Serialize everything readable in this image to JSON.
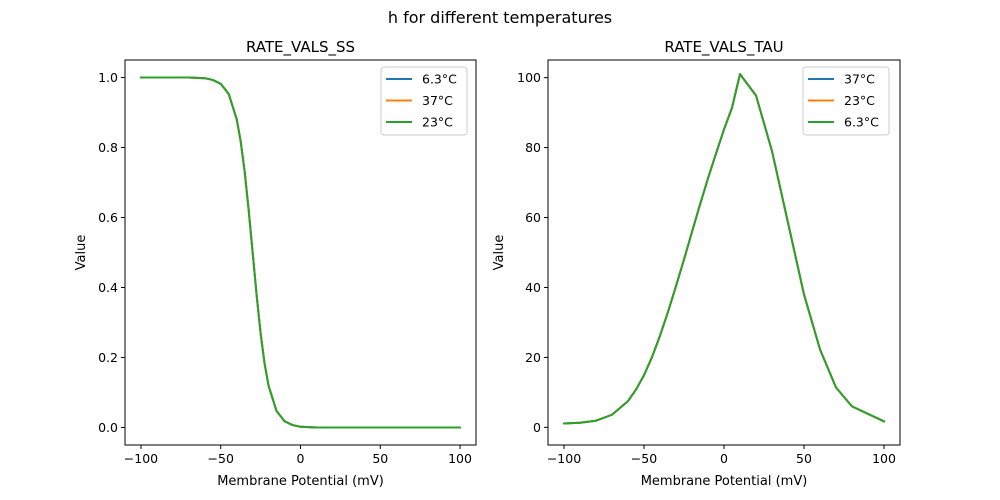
{
  "chart_data": {
    "suptitle": "h for different temperatures",
    "line_colors": [
      "#1f77b4",
      "#ff7f0e",
      "#2ca02c"
    ],
    "subplots": [
      {
        "type": "line",
        "title": "RATE_VALS_SS",
        "xlabel": "Membrane Potential (mV)",
        "ylabel": "Value",
        "xlim": [
          -110,
          110
        ],
        "ylim": [
          -0.05,
          1.05
        ],
        "xticks": [
          -100,
          -50,
          0,
          50,
          100
        ],
        "xtick_labels": [
          "−100",
          "−50",
          "0",
          "50",
          "100"
        ],
        "yticks": [
          0.0,
          0.2,
          0.4,
          0.6,
          0.8,
          1.0
        ],
        "ytick_labels": [
          "0.0",
          "0.2",
          "0.4",
          "0.6",
          "0.8",
          "1.0"
        ],
        "legend_position": "top-right",
        "series": [
          {
            "name": "6.3°C",
            "x": [
              -100,
              -90,
              -80,
              -70,
              -60,
              -55,
              -50,
              -45,
              -40,
              -37.5,
              -35,
              -32.5,
              -30,
              -27.5,
              -25,
              -22.5,
              -20,
              -15,
              -10,
              -5,
              0,
              10,
              20,
              40,
              60,
              80,
              100
            ],
            "y": [
              1.0,
              1.0,
              1.0,
              1.0,
              0.998,
              0.993,
              0.982,
              0.953,
              0.881,
              0.818,
              0.731,
              0.622,
              0.5,
              0.378,
              0.269,
              0.182,
              0.119,
              0.047,
              0.018,
              0.007,
              0.002,
              0.0,
              0.0,
              0.0,
              0.0,
              0.0,
              0.0
            ]
          },
          {
            "name": "37°C",
            "x": [
              -100,
              -90,
              -80,
              -70,
              -60,
              -55,
              -50,
              -45,
              -40,
              -37.5,
              -35,
              -32.5,
              -30,
              -27.5,
              -25,
              -22.5,
              -20,
              -15,
              -10,
              -5,
              0,
              10,
              20,
              40,
              60,
              80,
              100
            ],
            "y": [
              1.0,
              1.0,
              1.0,
              1.0,
              0.998,
              0.993,
              0.982,
              0.953,
              0.881,
              0.818,
              0.731,
              0.622,
              0.5,
              0.378,
              0.269,
              0.182,
              0.119,
              0.047,
              0.018,
              0.007,
              0.002,
              0.0,
              0.0,
              0.0,
              0.0,
              0.0,
              0.0
            ]
          },
          {
            "name": "23°C",
            "x": [
              -100,
              -90,
              -80,
              -70,
              -60,
              -55,
              -50,
              -45,
              -40,
              -37.5,
              -35,
              -32.5,
              -30,
              -27.5,
              -25,
              -22.5,
              -20,
              -15,
              -10,
              -5,
              0,
              10,
              20,
              40,
              60,
              80,
              100
            ],
            "y": [
              1.0,
              1.0,
              1.0,
              1.0,
              0.998,
              0.993,
              0.982,
              0.953,
              0.881,
              0.818,
              0.731,
              0.622,
              0.5,
              0.378,
              0.269,
              0.182,
              0.119,
              0.047,
              0.018,
              0.007,
              0.002,
              0.0,
              0.0,
              0.0,
              0.0,
              0.0,
              0.0
            ]
          }
        ]
      },
      {
        "type": "line",
        "title": "RATE_VALS_TAU",
        "xlabel": "Membrane Potential (mV)",
        "ylabel": "Value",
        "xlim": [
          -110,
          110
        ],
        "ylim": [
          -5.05,
          105.05
        ],
        "xticks": [
          -100,
          -50,
          0,
          50,
          100
        ],
        "xtick_labels": [
          "−100",
          "−50",
          "0",
          "50",
          "100"
        ],
        "yticks": [
          0,
          20,
          40,
          60,
          80,
          100
        ],
        "ytick_labels": [
          "0",
          "20",
          "40",
          "60",
          "80",
          "100"
        ],
        "legend_position": "top-right",
        "series": [
          {
            "name": "37°C",
            "x": [
              -100,
              -90,
              -80,
              -70,
              -60,
              -55,
              -50,
              -45,
              -40,
              -35,
              -30,
              -25,
              -20,
              -15,
              -10,
              -5,
              0,
              5,
              10,
              20,
              30,
              40,
              50,
              60,
              70,
              80,
              100
            ],
            "y": [
              1.1,
              1.3,
              1.9,
              3.6,
              7.5,
              10.8,
              14.9,
              20.1,
              26.2,
              33.0,
              40.4,
              48.0,
              55.9,
              63.7,
              71.2,
              78.3,
              85.2,
              91.4,
              101.0,
              94.9,
              79.0,
              58.5,
              38.0,
              22.3,
              11.4,
              6.0,
              1.7
            ]
          },
          {
            "name": "23°C",
            "x": [
              -100,
              -90,
              -80,
              -70,
              -60,
              -55,
              -50,
              -45,
              -40,
              -35,
              -30,
              -25,
              -20,
              -15,
              -10,
              -5,
              0,
              5,
              10,
              20,
              30,
              40,
              50,
              60,
              70,
              80,
              100
            ],
            "y": [
              1.1,
              1.3,
              1.9,
              3.6,
              7.5,
              10.8,
              14.9,
              20.1,
              26.2,
              33.0,
              40.4,
              48.0,
              55.9,
              63.7,
              71.2,
              78.3,
              85.2,
              91.4,
              101.0,
              94.9,
              79.0,
              58.5,
              38.0,
              22.3,
              11.4,
              6.0,
              1.7
            ]
          },
          {
            "name": "6.3°C",
            "x": [
              -100,
              -90,
              -80,
              -70,
              -60,
              -55,
              -50,
              -45,
              -40,
              -35,
              -30,
              -25,
              -20,
              -15,
              -10,
              -5,
              0,
              5,
              10,
              20,
              30,
              40,
              50,
              60,
              70,
              80,
              100
            ],
            "y": [
              1.1,
              1.3,
              1.9,
              3.6,
              7.5,
              10.8,
              14.9,
              20.1,
              26.2,
              33.0,
              40.4,
              48.0,
              55.9,
              63.7,
              71.2,
              78.3,
              85.2,
              91.4,
              101.0,
              94.9,
              79.0,
              58.5,
              38.0,
              22.3,
              11.4,
              6.0,
              1.7
            ]
          }
        ]
      }
    ]
  }
}
